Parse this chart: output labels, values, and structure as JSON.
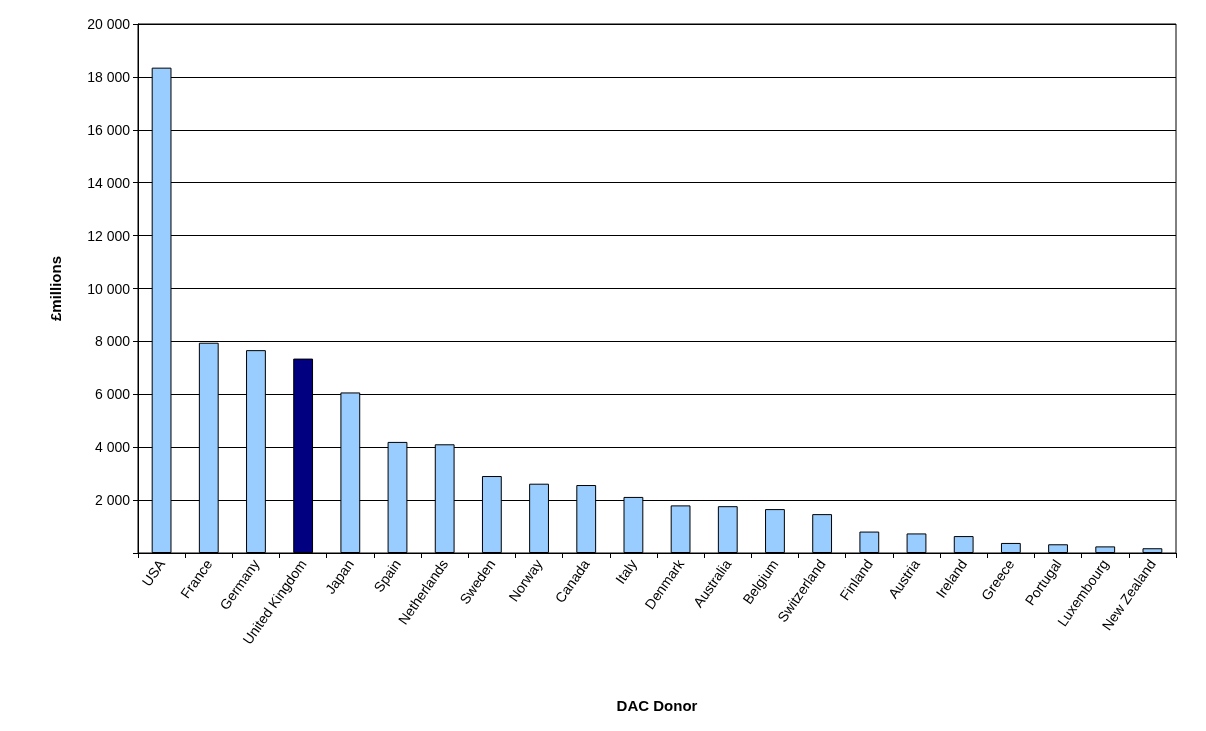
{
  "chart_data": {
    "type": "bar",
    "xlabel": "DAC Donor",
    "ylabel": "£millions",
    "categories": [
      "USA",
      "France",
      "Germany",
      "United Kingdom",
      "Japan",
      "Spain",
      "Netherlands",
      "Sweden",
      "Norway",
      "Canada",
      "Italy",
      "Denmark",
      "Australia",
      "Belgium",
      "Switzerland",
      "Finland",
      "Austria",
      "Ireland",
      "Greece",
      "Portugal",
      "Luxembourg",
      "New Zealand"
    ],
    "values": [
      18350,
      7950,
      7670,
      7350,
      6070,
      4200,
      4110,
      2910,
      2620,
      2570,
      2120,
      1800,
      1770,
      1660,
      1470,
      810,
      740,
      640,
      380,
      330,
      250,
      180
    ],
    "colors": [
      "#99ccff",
      "#99ccff",
      "#99ccff",
      "#000080",
      "#99ccff",
      "#99ccff",
      "#99ccff",
      "#99ccff",
      "#99ccff",
      "#99ccff",
      "#99ccff",
      "#99ccff",
      "#99ccff",
      "#99ccff",
      "#99ccff",
      "#99ccff",
      "#99ccff",
      "#99ccff",
      "#99ccff",
      "#99ccff",
      "#99ccff",
      "#99ccff"
    ],
    "ylim": [
      0,
      20000
    ],
    "yticks": [
      {
        "value": 0,
        "label": null
      },
      {
        "value": 2000,
        "label": "2 000"
      },
      {
        "value": 4000,
        "label": "4 000"
      },
      {
        "value": 6000,
        "label": "6 000"
      },
      {
        "value": 8000,
        "label": "8 000"
      },
      {
        "value": 10000,
        "label": "10 000"
      },
      {
        "value": 12000,
        "label": "12 000"
      },
      {
        "value": 14000,
        "label": "14 000"
      },
      {
        "value": 16000,
        "label": "16 000"
      },
      {
        "value": 18000,
        "label": "18 000"
      },
      {
        "value": 20000,
        "label": "20 000"
      }
    ],
    "grid": "y"
  }
}
